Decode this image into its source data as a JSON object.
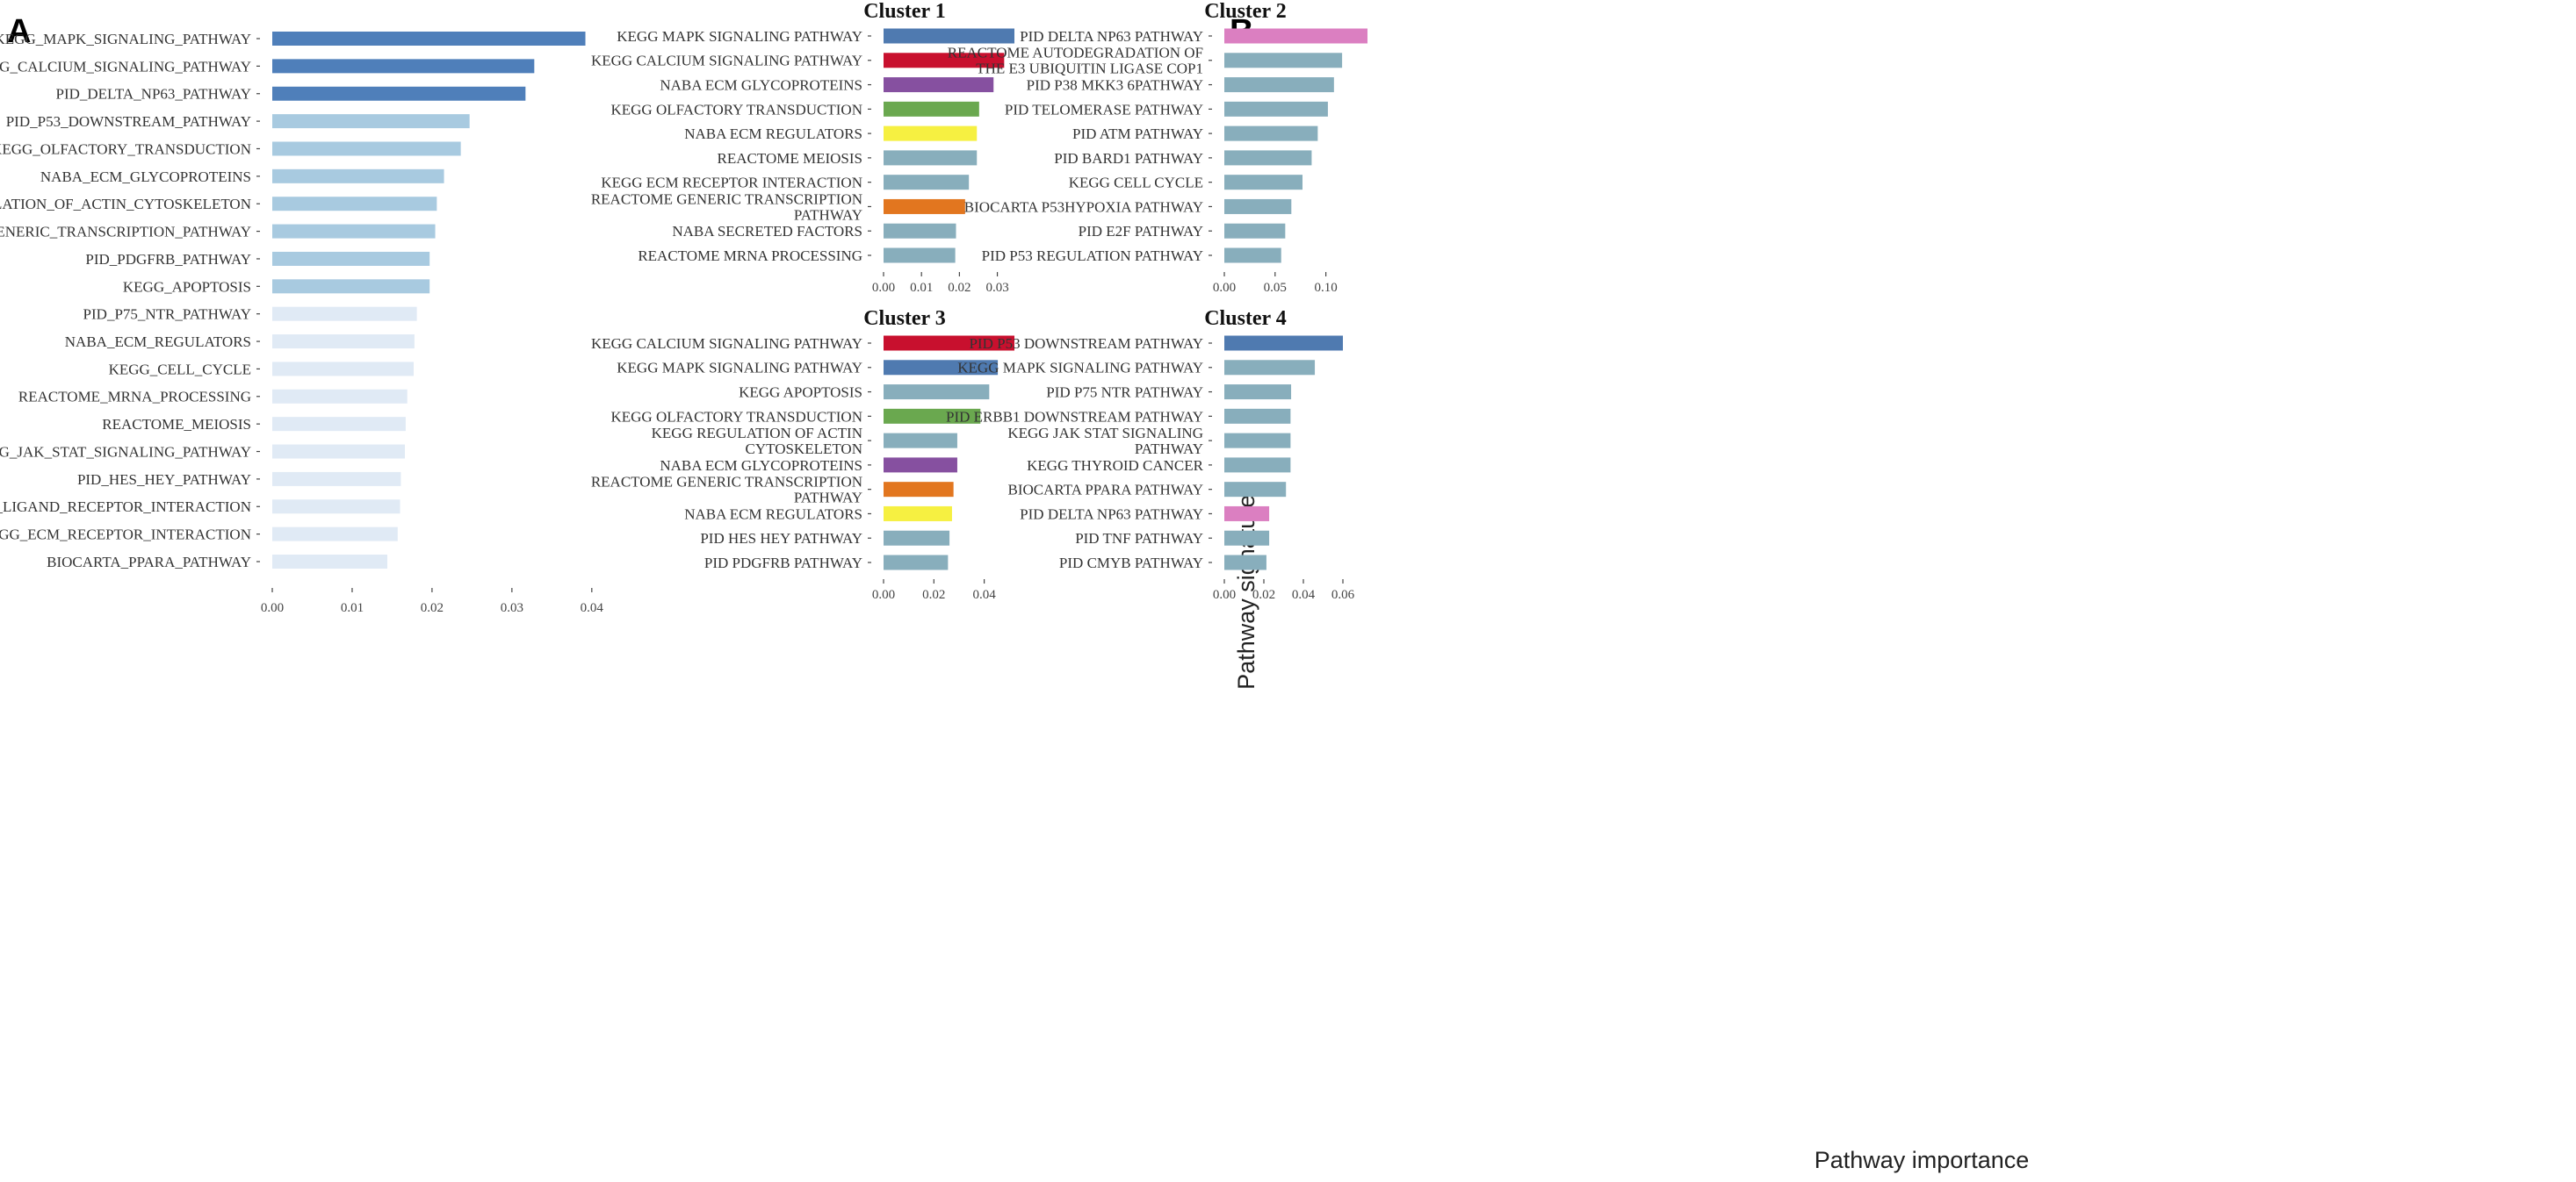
{
  "figure": {
    "panel_a_letter": "A",
    "panel_b_letter": "B",
    "shared_ylabel": "Pathway signatures",
    "shared_xlabel": "Pathway importance"
  },
  "colors": {
    "tier_dark": "#4f7fba",
    "tier_mid": "#a8cae0",
    "tier_light": "#e0eaf5",
    "default_bar": "#88aebc",
    "mapk": "#4f7ab0",
    "calcium": "#c8102e",
    "glycoproteins": "#8650a0",
    "olfactory": "#6aa84f",
    "ecm_regulators": "#f6f041",
    "generic_transcription": "#e2761f",
    "delta_np63": "#db7fc1",
    "p53_downstream": "#4f7ab0"
  },
  "chart_data": [
    {
      "id": "A",
      "type": "bar",
      "orientation": "horizontal",
      "title": "",
      "xlabel": "",
      "ylabel": "",
      "xlim": [
        0,
        0.042
      ],
      "xticks": [
        0,
        0.01,
        0.02,
        0.03,
        0.04
      ],
      "xtick_labels": [
        "0.00",
        "0.01",
        "0.02",
        "0.03",
        "0.04"
      ],
      "categories": [
        "KEGG_MAPK_SIGNALING_PATHWAY",
        "KEGG_CALCIUM_SIGNALING_PATHWAY",
        "PID_DELTA_NP63_PATHWAY",
        "PID_P53_DOWNSTREAM_PATHWAY",
        "KEGG_OLFACTORY_TRANSDUCTION",
        "NABA_ECM_GLYCOPROTEINS",
        "KEGG_REGULATION_OF_ACTIN_CYTOSKELETON",
        "REACTOME_GENERIC_TRANSCRIPTION_PATHWAY",
        "PID_PDGFRB_PATHWAY",
        "KEGG_APOPTOSIS",
        "PID_P75_NTR_PATHWAY",
        "NABA_ECM_REGULATORS",
        "KEGG_CELL_CYCLE",
        "REACTOME_MRNA_PROCESSING",
        "REACTOME_MEIOSIS",
        "KEGG_JAK_STAT_SIGNALING_PATHWAY",
        "PID_HES_HEY_PATHWAY",
        "KEGG_NEUROACTIVE_LIGAND_RECEPTOR_INTERACTION",
        "KEGG_ECM_RECEPTOR_INTERACTION",
        "BIOCARTA_PPARA_PATHWAY"
      ],
      "values": [
        0.0392,
        0.0328,
        0.0317,
        0.0247,
        0.0236,
        0.0215,
        0.0206,
        0.0204,
        0.0197,
        0.0197,
        0.0181,
        0.0178,
        0.0177,
        0.0169,
        0.0167,
        0.0166,
        0.0161,
        0.016,
        0.0157,
        0.0144
      ],
      "color_keys": [
        "tier_dark",
        "tier_dark",
        "tier_dark",
        "tier_mid",
        "tier_mid",
        "tier_mid",
        "tier_mid",
        "tier_mid",
        "tier_mid",
        "tier_mid",
        "tier_light",
        "tier_light",
        "tier_light",
        "tier_light",
        "tier_light",
        "tier_light",
        "tier_light",
        "tier_light",
        "tier_light",
        "tier_light"
      ]
    },
    {
      "id": "C1",
      "type": "bar",
      "orientation": "horizontal",
      "title": "Cluster 1",
      "xlim": [
        0,
        0.0345
      ],
      "xticks": [
        0,
        0.01,
        0.02,
        0.03
      ],
      "xtick_labels": [
        "0.00",
        "0.01",
        "0.02",
        "0.03"
      ],
      "categories": [
        "KEGG MAPK SIGNALING PATHWAY",
        "KEGG CALCIUM SIGNALING PATHWAY",
        "NABA ECM GLYCOPROTEINS",
        "KEGG OLFACTORY TRANSDUCTION",
        "NABA ECM REGULATORS",
        "REACTOME MEIOSIS",
        "KEGG ECM RECEPTOR INTERACTION",
        "REACTOME GENERIC TRANSCRIPTION\nPATHWAY",
        "NABA SECRETED FACTORS",
        "REACTOME MRNA PROCESSING"
      ],
      "values": [
        0.0345,
        0.0318,
        0.029,
        0.0252,
        0.0246,
        0.0246,
        0.0225,
        0.0215,
        0.0191,
        0.0189
      ],
      "color_keys": [
        "mapk",
        "calcium",
        "glycoproteins",
        "olfactory",
        "ecm_regulators",
        "default_bar",
        "default_bar",
        "generic_transcription",
        "default_bar",
        "default_bar"
      ]
    },
    {
      "id": "C2",
      "type": "bar",
      "orientation": "horizontal",
      "title": "Cluster 2",
      "xlim": [
        0,
        0.141
      ],
      "xticks": [
        0,
        0.05,
        0.1
      ],
      "xtick_labels": [
        "0.00",
        "0.05",
        "0.10"
      ],
      "categories": [
        "PID DELTA NP63 PATHWAY",
        "REACTOME AUTODEGRADATION OF\nTHE E3 UBIQUITIN LIGASE COP1",
        "PID P38 MKK3 6PATHWAY",
        "PID TELOMERASE PATHWAY",
        "PID ATM PATHWAY",
        "PID BARD1 PATHWAY",
        "KEGG CELL CYCLE",
        "BIOCARTA P53HYPOXIA PATHWAY",
        "PID E2F PATHWAY",
        "PID P53 REGULATION PATHWAY"
      ],
      "values": [
        0.141,
        0.116,
        0.108,
        0.102,
        0.092,
        0.086,
        0.077,
        0.066,
        0.06,
        0.056
      ],
      "color_keys": [
        "delta_np63",
        "default_bar",
        "default_bar",
        "default_bar",
        "default_bar",
        "default_bar",
        "default_bar",
        "default_bar",
        "default_bar",
        "default_bar"
      ]
    },
    {
      "id": "C3",
      "type": "bar",
      "orientation": "horizontal",
      "title": "Cluster 3",
      "xlim": [
        0,
        0.052
      ],
      "xticks": [
        0,
        0.02,
        0.04
      ],
      "xtick_labels": [
        "0.00",
        "0.02",
        "0.04"
      ],
      "categories": [
        "KEGG CALCIUM SIGNALING PATHWAY",
        "KEGG MAPK SIGNALING PATHWAY",
        "KEGG APOPTOSIS",
        "KEGG OLFACTORY TRANSDUCTION",
        "KEGG REGULATION OF ACTIN\nCYTOSKELETON",
        "NABA ECM GLYCOPROTEINS",
        "REACTOME GENERIC TRANSCRIPTION\nPATHWAY",
        "NABA ECM REGULATORS",
        "PID HES HEY PATHWAY",
        "PID PDGFRB PATHWAY"
      ],
      "values": [
        0.052,
        0.0454,
        0.042,
        0.0385,
        0.0293,
        0.0293,
        0.0278,
        0.0272,
        0.0262,
        0.0256
      ],
      "color_keys": [
        "calcium",
        "mapk",
        "default_bar",
        "olfactory",
        "default_bar",
        "glycoproteins",
        "generic_transcription",
        "ecm_regulators",
        "default_bar",
        "default_bar"
      ]
    },
    {
      "id": "C4",
      "type": "bar",
      "orientation": "horizontal",
      "title": "Cluster 4",
      "xlim": [
        0,
        0.06
      ],
      "xticks": [
        0,
        0.02,
        0.04,
        0.06
      ],
      "xtick_labels": [
        "0.00",
        "0.02",
        "0.04",
        "0.06"
      ],
      "categories": [
        "PID P53 DOWNSTREAM PATHWAY",
        "KEGG MAPK SIGNALING PATHWAY",
        "PID P75 NTR PATHWAY",
        "PID ERBB1 DOWNSTREAM PATHWAY",
        "KEGG JAK STAT SIGNALING\nPATHWAY",
        "KEGG THYROID CANCER",
        "BIOCARTA PPARA PATHWAY",
        "PID DELTA NP63 PATHWAY",
        "PID TNF PATHWAY",
        "PID CMYB PATHWAY"
      ],
      "values": [
        0.06,
        0.0458,
        0.0338,
        0.0335,
        0.0335,
        0.0335,
        0.0312,
        0.0227,
        0.0227,
        0.0213
      ],
      "color_keys": [
        "p53_downstream",
        "default_bar",
        "default_bar",
        "default_bar",
        "default_bar",
        "default_bar",
        "default_bar",
        "delta_np63",
        "default_bar",
        "default_bar"
      ]
    }
  ]
}
